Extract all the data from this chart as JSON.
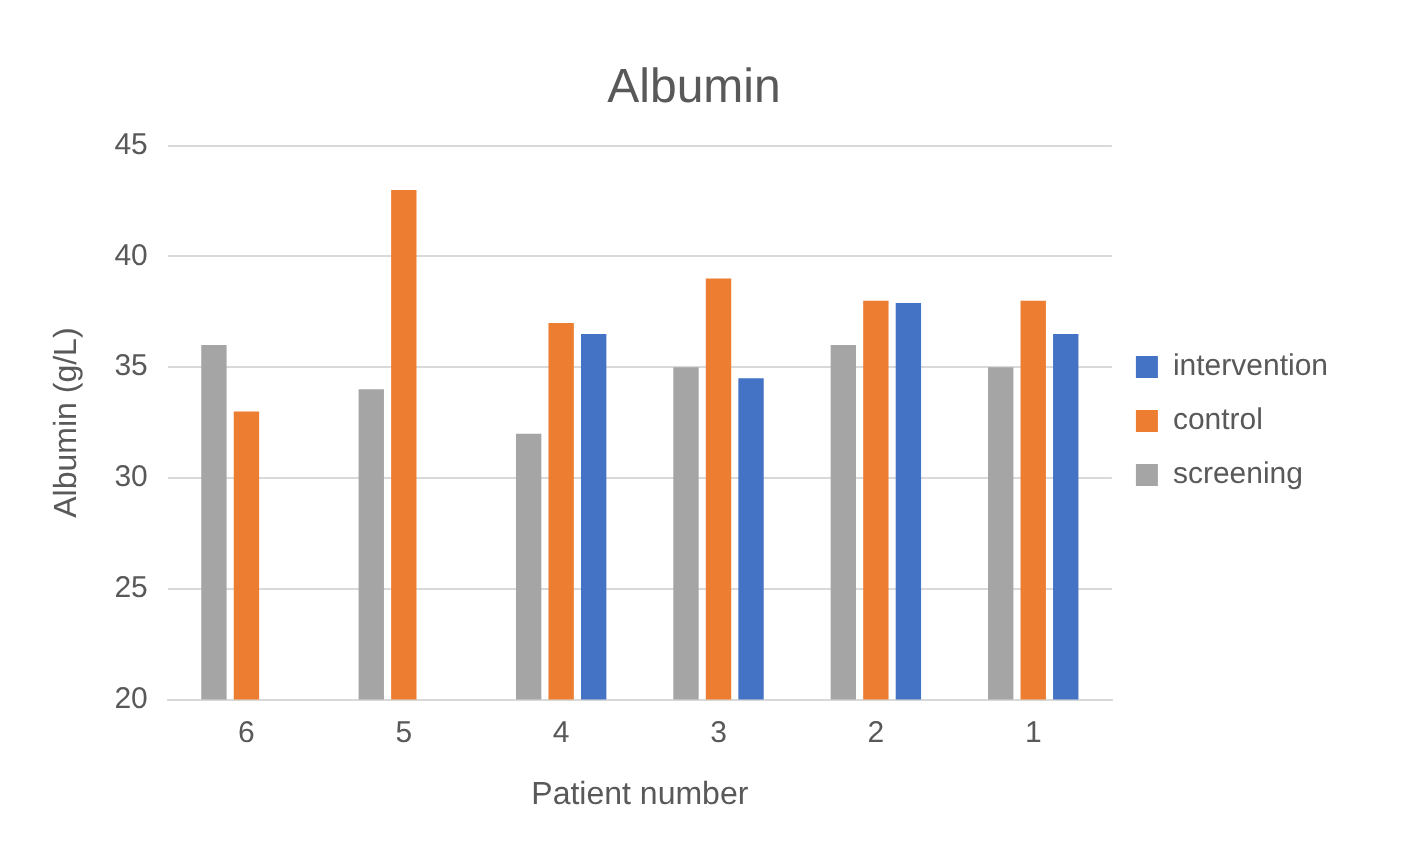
{
  "chart_data": {
    "type": "bar",
    "title": "Albumin",
    "xlabel": "Patient number",
    "ylabel": "Albumin (g/L)",
    "categories": [
      "6",
      "5",
      "4",
      "3",
      "2",
      "1"
    ],
    "series": [
      {
        "name": "screening",
        "color": "#a5a5a5",
        "values": [
          36,
          34,
          32,
          35,
          36,
          35
        ]
      },
      {
        "name": "control",
        "color": "#ed7d31",
        "values": [
          33,
          43,
          37,
          39,
          38,
          38
        ]
      },
      {
        "name": "intervention",
        "color": "#4472c4",
        "values": [
          null,
          null,
          36.5,
          34.5,
          37.9,
          36.5
        ]
      }
    ],
    "ylim": [
      20,
      45
    ],
    "yticks": [
      20,
      25,
      30,
      35,
      40,
      45
    ],
    "grid": "y",
    "legend": "right"
  }
}
